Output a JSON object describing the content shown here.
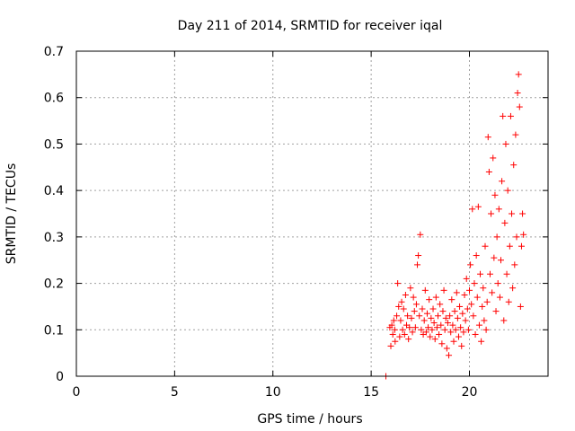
{
  "chart_data": {
    "type": "scatter",
    "title": "Day 211 of 2014, SRMTID for receiver iqal",
    "xlabel": "GPS time / hours",
    "ylabel": "SRMTID / TECUs",
    "xlim": [
      0,
      24
    ],
    "ylim": [
      0,
      0.7
    ],
    "xticks": [
      0,
      5,
      10,
      15,
      20
    ],
    "xtick_labels": [
      "0",
      "5",
      "10",
      "15",
      "20"
    ],
    "yticks": [
      0,
      0.1,
      0.2,
      0.3,
      0.4,
      0.5,
      0.6,
      0.7
    ],
    "ytick_labels": [
      "0",
      "0.1",
      "0.2",
      "0.3",
      "0.4",
      "0.5",
      "0.6",
      "0.7"
    ],
    "grid": true,
    "marker": "+",
    "color": "#ff0000",
    "series": [
      {
        "name": "SRMTID",
        "points": [
          [
            15.75,
            0.0
          ],
          [
            15.95,
            0.105
          ],
          [
            16.0,
            0.065
          ],
          [
            16.05,
            0.11
          ],
          [
            16.1,
            0.09
          ],
          [
            16.15,
            0.12
          ],
          [
            16.2,
            0.1
          ],
          [
            16.22,
            0.075
          ],
          [
            16.3,
            0.13
          ],
          [
            16.35,
            0.2
          ],
          [
            16.4,
            0.15
          ],
          [
            16.45,
            0.085
          ],
          [
            16.5,
            0.12
          ],
          [
            16.55,
            0.16
          ],
          [
            16.6,
            0.1
          ],
          [
            16.65,
            0.145
          ],
          [
            16.7,
            0.09
          ],
          [
            16.75,
            0.175
          ],
          [
            16.8,
            0.11
          ],
          [
            16.85,
            0.13
          ],
          [
            16.9,
            0.08
          ],
          [
            16.95,
            0.105
          ],
          [
            17.0,
            0.19
          ],
          [
            17.05,
            0.125
          ],
          [
            17.1,
            0.095
          ],
          [
            17.15,
            0.17
          ],
          [
            17.2,
            0.14
          ],
          [
            17.25,
            0.105
          ],
          [
            17.3,
            0.155
          ],
          [
            17.35,
            0.24
          ],
          [
            17.4,
            0.26
          ],
          [
            17.45,
            0.13
          ],
          [
            17.5,
            0.305
          ],
          [
            17.55,
            0.1
          ],
          [
            17.6,
            0.145
          ],
          [
            17.65,
            0.09
          ],
          [
            17.7,
            0.12
          ],
          [
            17.75,
            0.185
          ],
          [
            17.8,
            0.095
          ],
          [
            17.85,
            0.135
          ],
          [
            17.9,
            0.105
          ],
          [
            17.95,
            0.165
          ],
          [
            18.0,
            0.085
          ],
          [
            18.05,
            0.125
          ],
          [
            18.1,
            0.1
          ],
          [
            18.15,
            0.145
          ],
          [
            18.2,
            0.115
          ],
          [
            18.25,
            0.08
          ],
          [
            18.3,
            0.17
          ],
          [
            18.35,
            0.105
          ],
          [
            18.4,
            0.13
          ],
          [
            18.45,
            0.09
          ],
          [
            18.5,
            0.155
          ],
          [
            18.55,
            0.11
          ],
          [
            18.6,
            0.07
          ],
          [
            18.65,
            0.14
          ],
          [
            18.7,
            0.185
          ],
          [
            18.75,
            0.1
          ],
          [
            18.8,
            0.125
          ],
          [
            18.85,
            0.06
          ],
          [
            18.9,
            0.115
          ],
          [
            18.95,
            0.045
          ],
          [
            19.0,
            0.13
          ],
          [
            19.05,
            0.095
          ],
          [
            19.1,
            0.165
          ],
          [
            19.15,
            0.11
          ],
          [
            19.2,
            0.075
          ],
          [
            19.25,
            0.14
          ],
          [
            19.3,
            0.1
          ],
          [
            19.35,
            0.18
          ],
          [
            19.4,
            0.125
          ],
          [
            19.45,
            0.085
          ],
          [
            19.5,
            0.15
          ],
          [
            19.55,
            0.105
          ],
          [
            19.6,
            0.065
          ],
          [
            19.65,
            0.135
          ],
          [
            19.7,
            0.095
          ],
          [
            19.75,
            0.175
          ],
          [
            19.8,
            0.12
          ],
          [
            19.85,
            0.21
          ],
          [
            19.9,
            0.145
          ],
          [
            19.95,
            0.1
          ],
          [
            20.0,
            0.185
          ],
          [
            20.05,
            0.24
          ],
          [
            20.1,
            0.155
          ],
          [
            20.15,
            0.36
          ],
          [
            20.2,
            0.13
          ],
          [
            20.25,
            0.2
          ],
          [
            20.3,
            0.09
          ],
          [
            20.35,
            0.26
          ],
          [
            20.4,
            0.17
          ],
          [
            20.45,
            0.365
          ],
          [
            20.5,
            0.11
          ],
          [
            20.55,
            0.22
          ],
          [
            20.6,
            0.075
          ],
          [
            20.65,
            0.15
          ],
          [
            20.7,
            0.19
          ],
          [
            20.75,
            0.12
          ],
          [
            20.8,
            0.28
          ],
          [
            20.85,
            0.1
          ],
          [
            20.9,
            0.16
          ],
          [
            20.95,
            0.515
          ],
          [
            21.0,
            0.44
          ],
          [
            21.05,
            0.22
          ],
          [
            21.1,
            0.35
          ],
          [
            21.15,
            0.18
          ],
          [
            21.2,
            0.47
          ],
          [
            21.25,
            0.255
          ],
          [
            21.3,
            0.39
          ],
          [
            21.35,
            0.14
          ],
          [
            21.4,
            0.3
          ],
          [
            21.45,
            0.2
          ],
          [
            21.5,
            0.36
          ],
          [
            21.55,
            0.17
          ],
          [
            21.6,
            0.25
          ],
          [
            21.65,
            0.42
          ],
          [
            21.7,
            0.56
          ],
          [
            21.75,
            0.12
          ],
          [
            21.8,
            0.33
          ],
          [
            21.85,
            0.5
          ],
          [
            21.9,
            0.22
          ],
          [
            21.95,
            0.4
          ],
          [
            22.0,
            0.16
          ],
          [
            22.05,
            0.28
          ],
          [
            22.1,
            0.56
          ],
          [
            22.15,
            0.35
          ],
          [
            22.2,
            0.19
          ],
          [
            22.25,
            0.455
          ],
          [
            22.3,
            0.24
          ],
          [
            22.35,
            0.52
          ],
          [
            22.4,
            0.3
          ],
          [
            22.45,
            0.61
          ],
          [
            22.5,
            0.65
          ],
          [
            22.55,
            0.58
          ],
          [
            22.6,
            0.15
          ],
          [
            22.65,
            0.28
          ],
          [
            22.7,
            0.35
          ],
          [
            22.75,
            0.305
          ]
        ]
      }
    ]
  }
}
